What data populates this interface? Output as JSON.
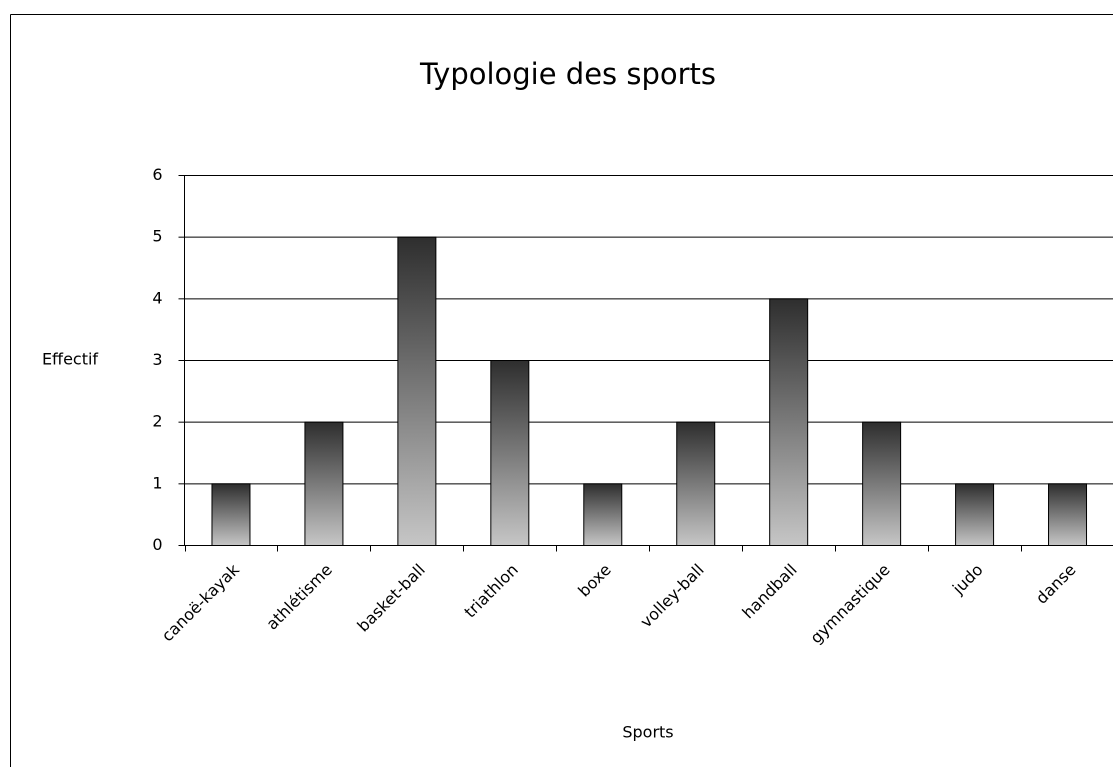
{
  "chart_data": {
    "type": "bar",
    "title": "Typologie des sports",
    "x_label": "Sports",
    "y_label": "Effectif",
    "categories": [
      "canoë-kayak",
      "athlétisme",
      "basket-ball",
      "triathlon",
      "boxe",
      "volley-ball",
      "handball",
      "gymnastique",
      "judo",
      "danse"
    ],
    "values": [
      1,
      2,
      5,
      3,
      1,
      2,
      4,
      2,
      1,
      1
    ],
    "gradient_colors": [
      "#2e2e2e",
      "#c6c6c6"
    ],
    "ylim": [
      0,
      6
    ],
    "yticks": [
      0,
      1,
      2,
      3,
      4,
      5,
      6
    ],
    "grid": true
  }
}
